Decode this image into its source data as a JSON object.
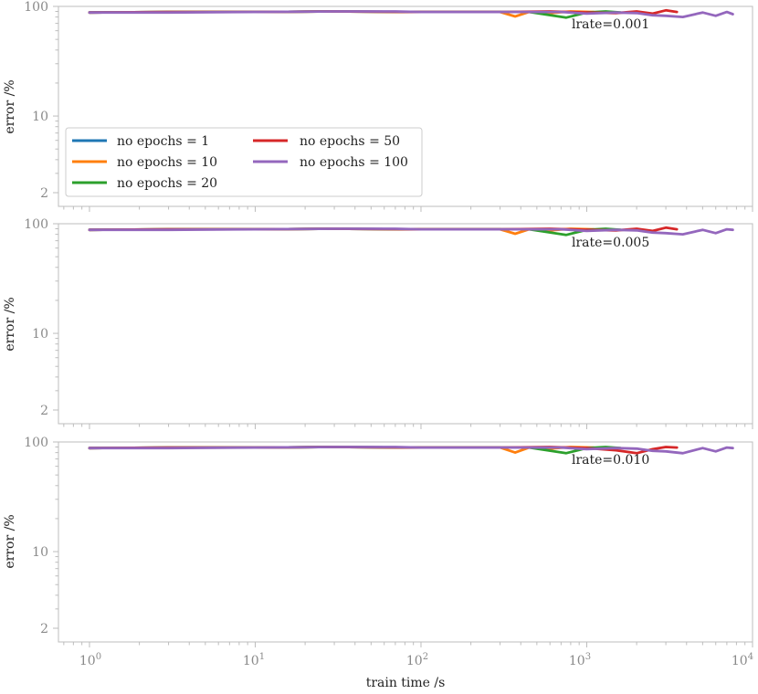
{
  "chart_data": {
    "type": "line",
    "xscale": "log",
    "yscale": "log",
    "xlim": [
      0.65,
      10000
    ],
    "ylim": [
      1.5,
      100
    ],
    "xlabel": "train time /s",
    "ylabel": "error /%",
    "x_tick_labels": [
      "10^0",
      "10^1",
      "10^2",
      "10^3",
      "10^4"
    ],
    "y_tick_labels": [
      "2",
      "10",
      "100"
    ],
    "y_ticks": [
      2,
      10,
      100
    ],
    "legend": {
      "location": "lower-left of top panel",
      "entries": [
        "no epochs = 1",
        "no epochs = 10",
        "no epochs = 20",
        "no epochs = 50",
        "no epochs = 100"
      ]
    },
    "series_colors": {
      "no epochs = 1": "#1f77b4",
      "no epochs = 10": "#ff7f0e",
      "no epochs = 20": "#2ca02c",
      "no epochs = 50": "#d62728",
      "no epochs = 100": "#9467bd"
    },
    "panels": [
      {
        "annotation": "lrate=0.001",
        "series": [
          {
            "name": "no epochs = 1",
            "x": [
              1,
              3,
              10,
              30,
              100,
              300
            ],
            "y": [
              88,
              89,
              89,
              90,
              89,
              89
            ]
          },
          {
            "name": "no epochs = 10",
            "x": [
              1,
              3,
              10,
              30,
              100,
              300,
              370,
              450,
              600,
              800,
              1100
            ],
            "y": [
              88,
              89,
              89,
              90,
              89,
              89,
              81,
              89,
              87,
              90,
              89
            ]
          },
          {
            "name": "no epochs = 20",
            "x": [
              1,
              3,
              10,
              30,
              100,
              300,
              450,
              750,
              1000,
              1300,
              1600
            ],
            "y": [
              88,
              89,
              89,
              90,
              89,
              89,
              89,
              79,
              88,
              90,
              88
            ]
          },
          {
            "name": "no epochs = 50",
            "x": [
              1,
              3,
              10,
              30,
              100,
              300,
              600,
              1000,
              1500,
              2000,
              2500,
              3000,
              3500
            ],
            "y": [
              88,
              89,
              89,
              90,
              89,
              89,
              90,
              88,
              87,
              90,
              86,
              92,
              89
            ]
          },
          {
            "name": "no epochs = 100",
            "x": [
              1,
              3,
              10,
              30,
              70,
              100,
              300,
              700,
              1000,
              1500,
              2000,
              2500,
              3000,
              3800,
              5000,
              6000,
              7000,
              7600
            ],
            "y": [
              88,
              88,
              89,
              90,
              90,
              89,
              89,
              89,
              86,
              88,
              87,
              83,
              82,
              80,
              88,
              82,
              89,
              85
            ]
          }
        ]
      },
      {
        "annotation": "lrate=0.005",
        "series": [
          {
            "name": "no epochs = 1",
            "x": [
              1,
              3,
              10,
              30,
              100,
              300
            ],
            "y": [
              88,
              89,
              89,
              90,
              89,
              89
            ]
          },
          {
            "name": "no epochs = 10",
            "x": [
              1,
              3,
              10,
              30,
              100,
              300,
              370,
              450,
              600,
              800,
              1100
            ],
            "y": [
              88,
              89,
              89,
              90,
              89,
              89,
              81,
              89,
              87,
              90,
              89
            ]
          },
          {
            "name": "no epochs = 20",
            "x": [
              1,
              3,
              10,
              30,
              100,
              300,
              450,
              750,
              1000,
              1300,
              1600
            ],
            "y": [
              88,
              89,
              89,
              90,
              89,
              89,
              89,
              79,
              88,
              90,
              88
            ]
          },
          {
            "name": "no epochs = 50",
            "x": [
              1,
              3,
              10,
              30,
              100,
              300,
              600,
              1000,
              1500,
              2000,
              2500,
              3000,
              3500
            ],
            "y": [
              88,
              89,
              89,
              90,
              89,
              89,
              90,
              88,
              87,
              90,
              86,
              92,
              89
            ]
          },
          {
            "name": "no epochs = 100",
            "x": [
              1,
              3,
              10,
              30,
              70,
              100,
              300,
              700,
              1000,
              1500,
              2000,
              2500,
              3000,
              3800,
              5000,
              6000,
              7000,
              7600
            ],
            "y": [
              88,
              88,
              89,
              90,
              90,
              89,
              89,
              89,
              86,
              88,
              87,
              83,
              82,
              80,
              88,
              82,
              89,
              88
            ]
          }
        ]
      },
      {
        "annotation": "lrate=0.010",
        "series": [
          {
            "name": "no epochs = 1",
            "x": [
              1,
              3,
              10,
              30,
              100,
              300
            ],
            "y": [
              88,
              89,
              89,
              90,
              89,
              89
            ]
          },
          {
            "name": "no epochs = 10",
            "x": [
              1,
              3,
              10,
              30,
              100,
              300,
              370,
              450,
              600,
              800,
              1100
            ],
            "y": [
              88,
              89,
              89,
              90,
              89,
              89,
              80,
              89,
              87,
              90,
              89
            ]
          },
          {
            "name": "no epochs = 20",
            "x": [
              1,
              3,
              10,
              30,
              100,
              300,
              450,
              750,
              1000,
              1300,
              1600
            ],
            "y": [
              88,
              89,
              89,
              90,
              89,
              89,
              89,
              79,
              88,
              90,
              88
            ]
          },
          {
            "name": "no epochs = 50",
            "x": [
              1,
              3,
              10,
              30,
              100,
              300,
              600,
              1000,
              1500,
              2000,
              2500,
              3000,
              3500
            ],
            "y": [
              88,
              89,
              89,
              90,
              89,
              89,
              90,
              88,
              84,
              79,
              86,
              90,
              89
            ]
          },
          {
            "name": "no epochs = 100",
            "x": [
              1,
              3,
              10,
              30,
              70,
              100,
              300,
              700,
              1000,
              1500,
              2000,
              2500,
              3000,
              3800,
              5000,
              6000,
              7000,
              7600
            ],
            "y": [
              88,
              88,
              89,
              90,
              90,
              89,
              89,
              89,
              86,
              88,
              87,
              83,
              82,
              79,
              88,
              82,
              89,
              88
            ]
          }
        ]
      }
    ]
  }
}
